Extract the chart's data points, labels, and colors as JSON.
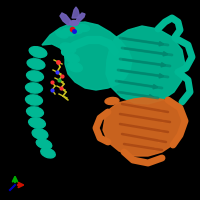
{
  "background_color": "#000000",
  "fig_size": [
    2.0,
    2.0
  ],
  "dpi": 100,
  "teal_color": "#00B894",
  "teal_dark": "#008870",
  "orange_color": "#D46820",
  "orange_dark": "#A04010",
  "purple_color": "#7060B8",
  "yellow_color": "#C8C020",
  "axis_x_color": "#CC1100",
  "axis_y_color": "#00AA00",
  "axis_z_color": "#0000BB",
  "helix_positions": [
    [
      38,
      148,
      18,
      10,
      -15
    ],
    [
      36,
      136,
      18,
      10,
      -12
    ],
    [
      35,
      124,
      17,
      10,
      -10
    ],
    [
      34,
      112,
      17,
      10,
      -8
    ],
    [
      34,
      100,
      17,
      10,
      -8
    ],
    [
      35,
      88,
      17,
      10,
      -10
    ],
    [
      37,
      77,
      17,
      10,
      -12
    ],
    [
      40,
      66,
      16,
      10,
      -15
    ],
    [
      44,
      56,
      16,
      9,
      -18
    ],
    [
      48,
      47,
      15,
      9,
      -20
    ]
  ],
  "helix2_positions": [
    [
      68,
      152,
      16,
      9,
      -20
    ],
    [
      72,
      142,
      15,
      9,
      -18
    ],
    [
      75,
      133,
      15,
      9,
      -15
    ]
  ]
}
